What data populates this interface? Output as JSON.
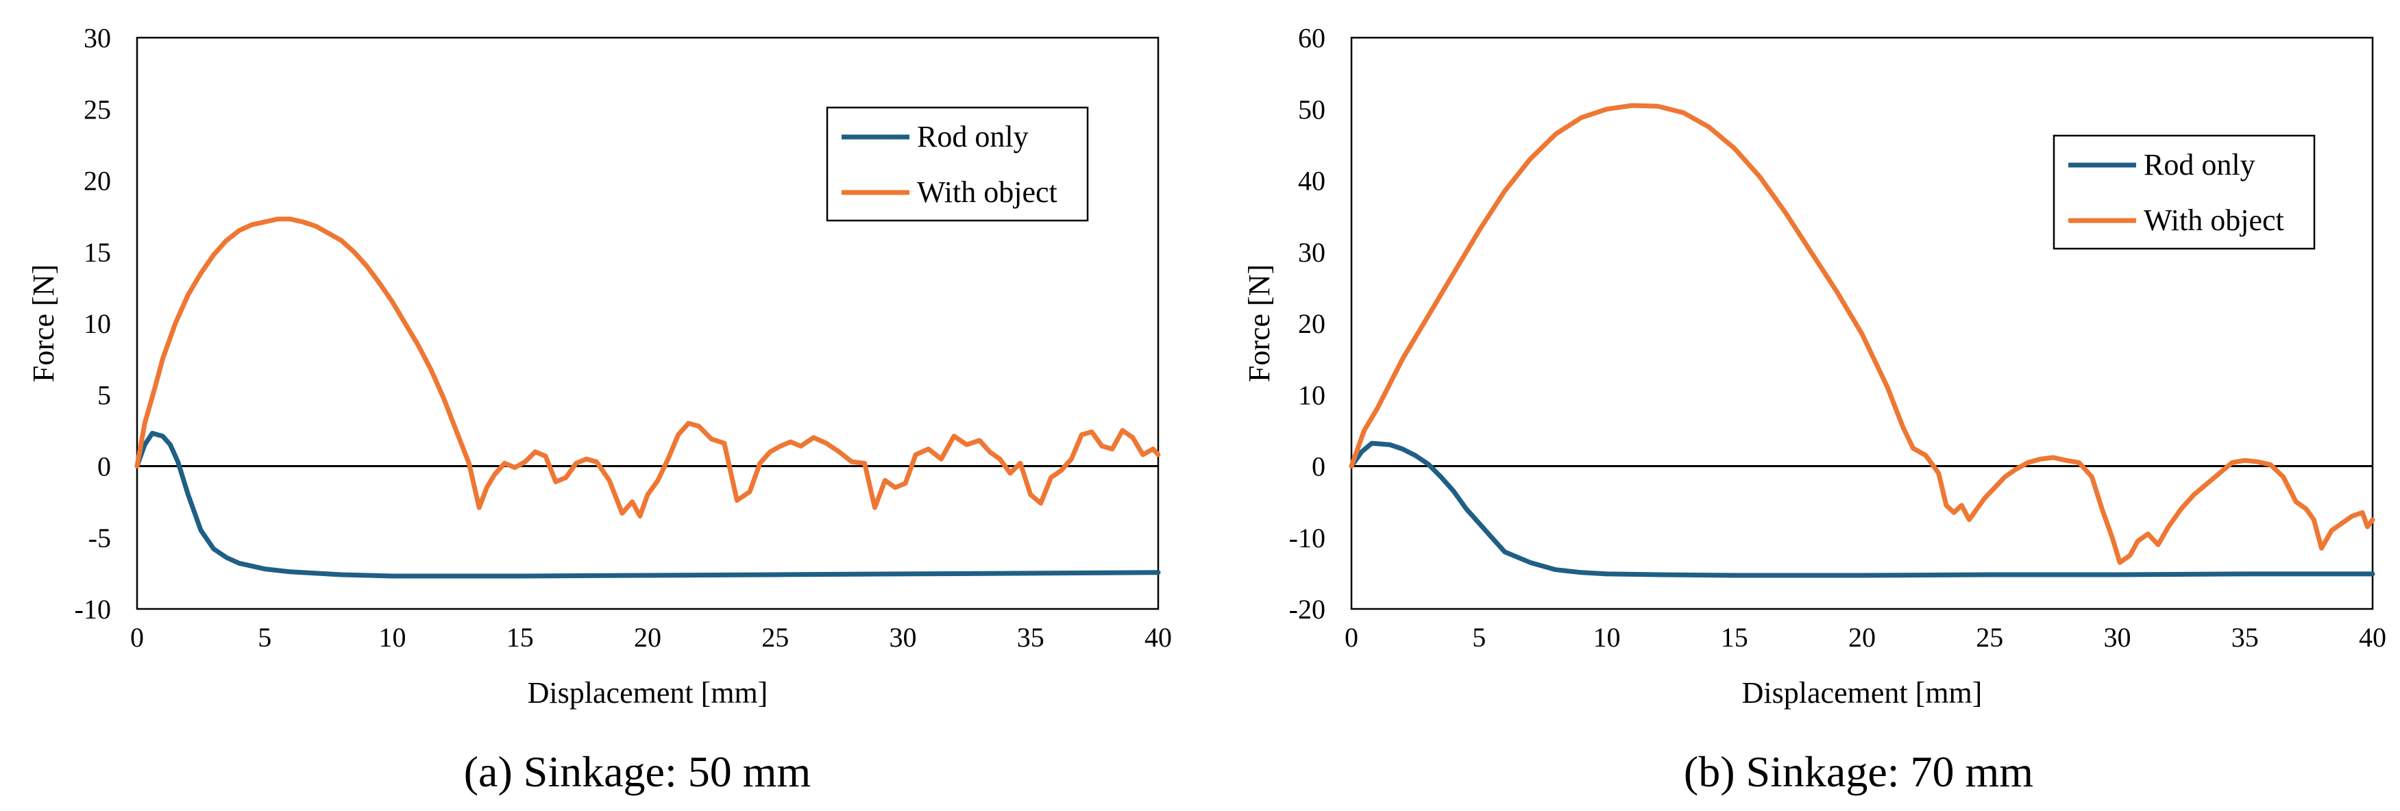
{
  "colors": {
    "rod_only": "#1f5f85",
    "with_object": "#ee7733",
    "axis": "#000000"
  },
  "chart_data": [
    {
      "type": "line",
      "caption": "(a) Sinkage: 50 mm",
      "xlabel": "Displacement [mm]",
      "ylabel": "Force [N]",
      "xlim": [
        0,
        40
      ],
      "ylim": [
        -10,
        30
      ],
      "xticks": [
        0,
        5,
        10,
        15,
        20,
        25,
        30,
        35,
        40
      ],
      "yticks": [
        -10,
        -5,
        0,
        5,
        10,
        15,
        20,
        25,
        30
      ],
      "legend_position": "top-right",
      "series": [
        {
          "name": "Rod only",
          "x": [
            0,
            0.3,
            0.6,
            1.0,
            1.3,
            1.6,
            2.0,
            2.5,
            3.0,
            3.5,
            4.0,
            5.0,
            6.0,
            7.0,
            8.0,
            10.0,
            12.0,
            15.0,
            20.0,
            25.0,
            30.0,
            35.0,
            40.0
          ],
          "y": [
            0,
            1.5,
            2.3,
            2.1,
            1.5,
            0.3,
            -2.0,
            -4.5,
            -5.8,
            -6.4,
            -6.8,
            -7.2,
            -7.4,
            -7.5,
            -7.6,
            -7.7,
            -7.7,
            -7.7,
            -7.65,
            -7.6,
            -7.55,
            -7.5,
            -7.45
          ]
        },
        {
          "name": "With object",
          "x": [
            0,
            0.3,
            0.7,
            1.0,
            1.5,
            2.0,
            2.5,
            3.0,
            3.5,
            4.0,
            4.5,
            5.0,
            5.5,
            6.0,
            6.5,
            7.0,
            7.5,
            8.0,
            8.5,
            9.0,
            9.5,
            10.0,
            10.5,
            11.0,
            11.5,
            12.0,
            12.5,
            13.0,
            13.4,
            13.7,
            14.0,
            14.4,
            14.8,
            15.2,
            15.6,
            16.0,
            16.4,
            16.8,
            17.2,
            17.6,
            18.0,
            18.5,
            19.0,
            19.4,
            19.7,
            20.0,
            20.4,
            20.8,
            21.2,
            21.6,
            22.0,
            22.5,
            23.0,
            23.5,
            24.0,
            24.4,
            24.8,
            25.2,
            25.6,
            26.0,
            26.5,
            27.0,
            27.5,
            28.0,
            28.5,
            28.9,
            29.3,
            29.7,
            30.1,
            30.5,
            31.0,
            31.5,
            32.0,
            32.5,
            33.0,
            33.4,
            33.8,
            34.2,
            34.6,
            35.0,
            35.4,
            35.8,
            36.2,
            36.6,
            37.0,
            37.4,
            37.8,
            38.2,
            38.6,
            39.0,
            39.4,
            39.8,
            40.0
          ],
          "y": [
            0,
            3.0,
            5.5,
            7.5,
            10.0,
            12.0,
            13.5,
            14.8,
            15.8,
            16.5,
            16.9,
            17.1,
            17.3,
            17.3,
            17.1,
            16.8,
            16.3,
            15.8,
            15.0,
            14.0,
            12.8,
            11.5,
            10.0,
            8.5,
            6.8,
            4.8,
            2.5,
            0.2,
            -2.9,
            -1.5,
            -0.6,
            0.2,
            -0.1,
            0.3,
            1.0,
            0.7,
            -1.1,
            -0.8,
            0.2,
            0.5,
            0.3,
            -1.0,
            -3.3,
            -2.5,
            -3.5,
            -2.0,
            -1.0,
            0.5,
            2.2,
            3.0,
            2.8,
            1.9,
            1.6,
            -2.4,
            -1.8,
            0.2,
            1.0,
            1.4,
            1.7,
            1.4,
            2.0,
            1.6,
            1.0,
            0.3,
            0.2,
            -2.9,
            -1.0,
            -1.5,
            -1.2,
            0.8,
            1.2,
            0.5,
            2.1,
            1.5,
            1.8,
            1.0,
            0.5,
            -0.5,
            0.2,
            -2.0,
            -2.6,
            -0.8,
            -0.3,
            0.5,
            2.2,
            2.4,
            1.4,
            1.2,
            2.5,
            2.0,
            0.8,
            1.2,
            0.8
          ]
        }
      ]
    },
    {
      "type": "line",
      "caption": "(b) Sinkage: 70 mm",
      "xlabel": "Displacement [mm]",
      "ylabel": "Force [N]",
      "xlim": [
        0,
        40
      ],
      "ylim": [
        -20,
        60
      ],
      "xticks": [
        0,
        5,
        10,
        15,
        20,
        25,
        30,
        35,
        40
      ],
      "yticks": [
        -20,
        -10,
        0,
        10,
        20,
        30,
        40,
        50,
        60
      ],
      "legend_position": "top-right",
      "series": [
        {
          "name": "Rod only",
          "x": [
            0,
            0.4,
            0.8,
            1.5,
            2.0,
            2.5,
            3.0,
            3.5,
            4.0,
            4.5,
            5.0,
            5.5,
            6.0,
            7.0,
            8.0,
            9.0,
            10.0,
            12.0,
            15.0,
            20.0,
            25.0,
            30.0,
            35.0,
            40.0
          ],
          "y": [
            0,
            2.0,
            3.2,
            3.0,
            2.4,
            1.5,
            0.3,
            -1.5,
            -3.5,
            -6.0,
            -8.0,
            -10.0,
            -12.0,
            -13.5,
            -14.5,
            -14.9,
            -15.1,
            -15.2,
            -15.3,
            -15.3,
            -15.2,
            -15.2,
            -15.1,
            -15.1
          ]
        },
        {
          "name": "With object",
          "x": [
            0,
            0.5,
            1.0,
            2.0,
            3.0,
            4.0,
            5.0,
            6.0,
            7.0,
            8.0,
            9.0,
            10.0,
            11.0,
            12.0,
            13.0,
            14.0,
            15.0,
            16.0,
            17.0,
            18.0,
            19.0,
            20.0,
            21.0,
            21.6,
            22.0,
            22.5,
            23.0,
            23.3,
            23.6,
            23.9,
            24.2,
            24.5,
            24.8,
            25.2,
            25.6,
            26.0,
            26.5,
            27.0,
            27.5,
            28.0,
            28.5,
            29.0,
            29.4,
            29.8,
            30.1,
            30.5,
            30.8,
            31.2,
            31.6,
            32.0,
            32.5,
            33.0,
            33.5,
            34.0,
            34.5,
            35.0,
            35.5,
            36.0,
            36.5,
            37.0,
            37.4,
            37.7,
            38.0,
            38.4,
            38.8,
            39.2,
            39.6,
            39.8,
            40.0
          ],
          "y": [
            0,
            5.0,
            8.0,
            15.0,
            21.0,
            27.0,
            33.0,
            38.5,
            43.0,
            46.5,
            48.8,
            50.0,
            50.5,
            50.4,
            49.5,
            47.5,
            44.5,
            40.5,
            35.5,
            30.0,
            24.5,
            18.5,
            11.0,
            5.5,
            2.5,
            1.5,
            -1.0,
            -5.5,
            -6.5,
            -5.5,
            -7.5,
            -6.0,
            -4.5,
            -3.0,
            -1.5,
            -0.5,
            0.5,
            1.0,
            1.2,
            0.8,
            0.5,
            -1.5,
            -6.0,
            -10.0,
            -13.5,
            -12.5,
            -10.5,
            -9.5,
            -11.0,
            -8.5,
            -6.0,
            -4.0,
            -2.5,
            -1.0,
            0.5,
            0.8,
            0.6,
            0.2,
            -1.5,
            -5.0,
            -6.0,
            -7.5,
            -11.5,
            -9.0,
            -8.0,
            -7.0,
            -6.5,
            -8.5,
            -7.5
          ]
        }
      ]
    }
  ]
}
